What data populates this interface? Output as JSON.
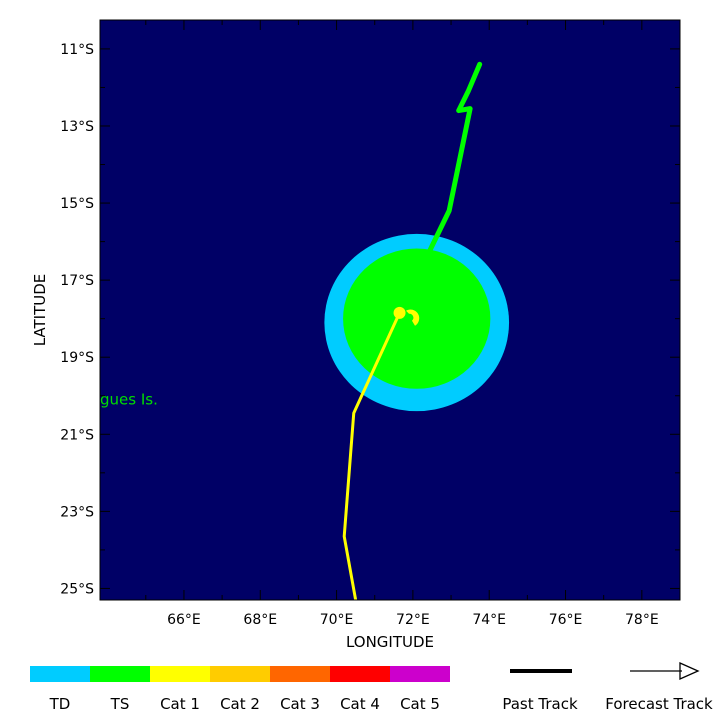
{
  "map": {
    "background_color": "#000066",
    "lon_range": [
      63.8,
      79.0
    ],
    "lat_range": [
      -25.3,
      -10.25
    ],
    "x_axis_title": "LONGITUDE",
    "y_axis_title": "LATITUDE",
    "lon_ticks": [
      {
        "value": 66,
        "label": "66°E"
      },
      {
        "value": 68,
        "label": "68°E"
      },
      {
        "value": 70,
        "label": "70°E"
      },
      {
        "value": 72,
        "label": "72°E"
      },
      {
        "value": 74,
        "label": "74°E"
      },
      {
        "value": 76,
        "label": "76°E"
      },
      {
        "value": 78,
        "label": "78°E"
      }
    ],
    "lon_minor_ticks": [
      65,
      67,
      69,
      71,
      73,
      75,
      77
    ],
    "lat_ticks": [
      {
        "value": -11,
        "label": "11°S"
      },
      {
        "value": -13,
        "label": "13°S"
      },
      {
        "value": -15,
        "label": "15°S"
      },
      {
        "value": -17,
        "label": "17°S"
      },
      {
        "value": -19,
        "label": "19°S"
      },
      {
        "value": -21,
        "label": "21°S"
      },
      {
        "value": -23,
        "label": "23°S"
      },
      {
        "value": -25,
        "label": "25°S"
      }
    ],
    "lat_minor_ticks": [
      -12,
      -14,
      -16,
      -18,
      -20,
      -22,
      -24
    ],
    "place_labels": [
      {
        "text": "gues Is.",
        "lon": 63.8,
        "lat": -20.1,
        "color": "#00dd00"
      }
    ]
  },
  "wind_fields": [
    {
      "category": "TD",
      "color": "#00ccff",
      "center_lon": 72.1,
      "center_lat": -18.1,
      "lon_radius": 2.42,
      "lat_radius": 2.3
    },
    {
      "category": "TS",
      "color": "#00ff00",
      "center_lon": 72.1,
      "center_lat": -18.0,
      "lon_radius": 1.93,
      "lat_radius": 1.82
    }
  ],
  "past_track": {
    "category": "TS",
    "color": "#00ff00",
    "points": [
      {
        "lon": 73.75,
        "lat": -11.4
      },
      {
        "lon": 73.45,
        "lat": -12.1
      },
      {
        "lon": 73.2,
        "lat": -12.6
      },
      {
        "lon": 73.5,
        "lat": -12.55
      },
      {
        "lon": 72.95,
        "lat": -15.2
      },
      {
        "lon": 71.65,
        "lat": -17.85
      }
    ]
  },
  "forecast_track": {
    "color": "#ffff00",
    "points": [
      {
        "lon": 71.65,
        "lat": -17.85
      },
      {
        "lon": 70.45,
        "lat": -20.45
      },
      {
        "lon": 70.2,
        "lat": -23.65
      },
      {
        "lon": 70.5,
        "lat": -25.3
      }
    ]
  },
  "current_position": {
    "lon": 71.65,
    "lat": -17.85,
    "category": "Cat 1",
    "color": "#ffff00"
  },
  "storm_symbol": {
    "lon": 71.95,
    "lat": -17.95,
    "color": "#ffff00"
  },
  "legend": {
    "categories": [
      {
        "label": "TD",
        "color": "#00ccff"
      },
      {
        "label": "TS",
        "color": "#00ff00"
      },
      {
        "label": "Cat 1",
        "color": "#ffff00"
      },
      {
        "label": "Cat 2",
        "color": "#ffcc00"
      },
      {
        "label": "Cat 3",
        "color": "#ff6600"
      },
      {
        "label": "Cat 4",
        "color": "#ff0000"
      },
      {
        "label": "Cat 5",
        "color": "#cc00cc"
      }
    ],
    "past_track_label": "Past Track",
    "forecast_track_label": "Forecast Track"
  }
}
